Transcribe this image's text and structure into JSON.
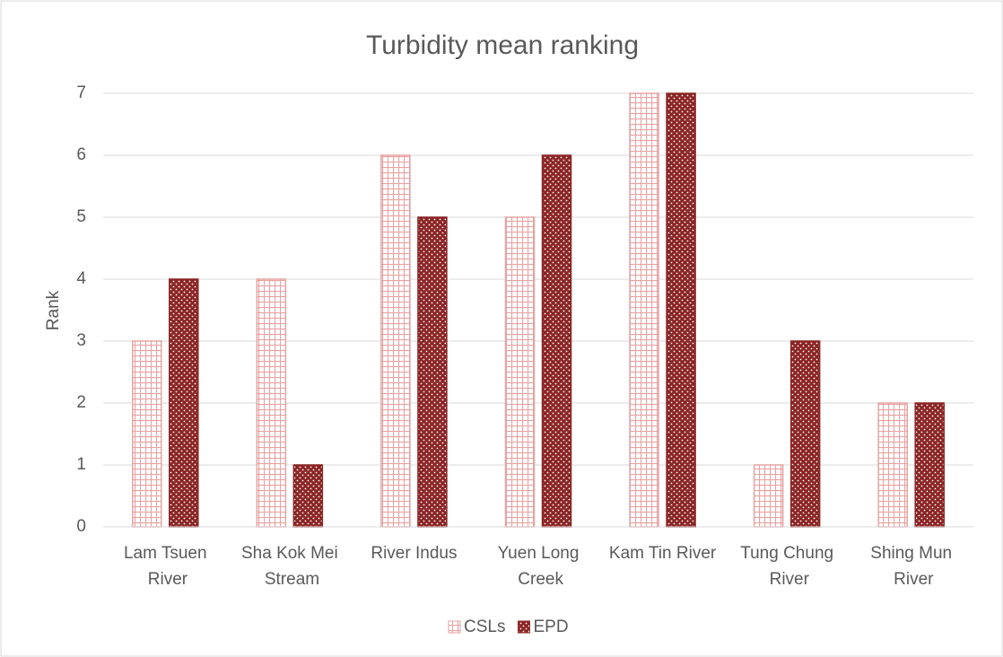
{
  "chart_data": {
    "type": "bar",
    "title": "Turbidity mean ranking",
    "y_label": "Rank",
    "categories": [
      "Lam Tsuen River",
      "Sha Kok Mei Stream",
      "River Indus",
      "Yuen Long Creek",
      "Kam Tin River",
      "Tung Chung River",
      "Shing Mun River"
    ],
    "series": [
      {
        "name": "CSLs",
        "color": "#e6a3a3",
        "values": [
          3,
          4,
          6,
          5,
          7,
          1,
          2
        ]
      },
      {
        "name": "EPD",
        "color": "#8b2525",
        "values": [
          4,
          1,
          5,
          6,
          7,
          3,
          2
        ]
      }
    ],
    "ylim": [
      0,
      7
    ],
    "yticks": [
      0,
      1,
      2,
      3,
      4,
      5,
      6,
      7
    ],
    "grid": true,
    "legend": "bottom"
  }
}
